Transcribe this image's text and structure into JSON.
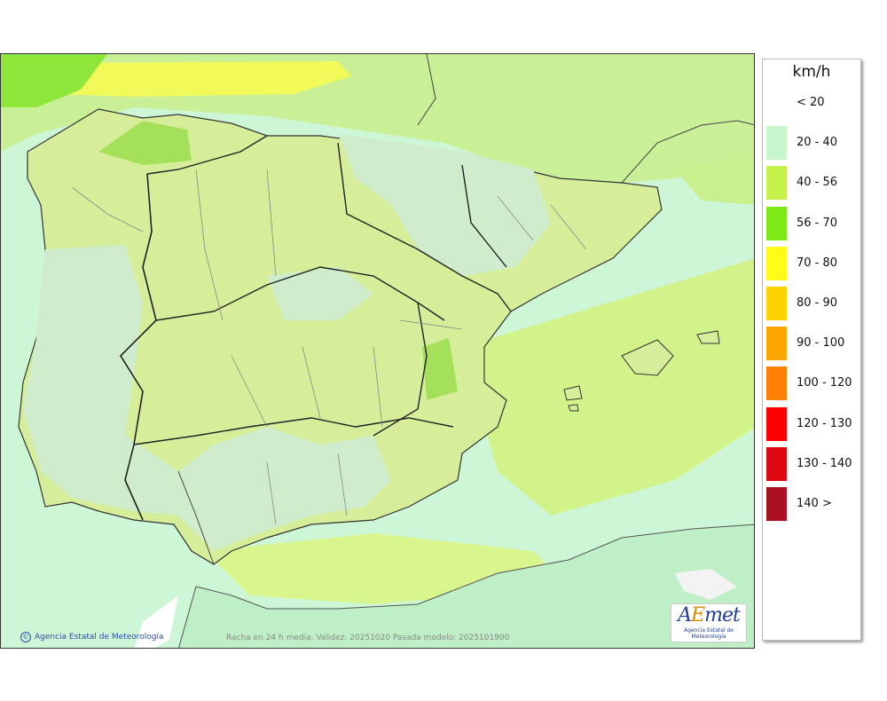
{
  "map": {
    "credit": "Agencia Estatal de Meteorología",
    "caption": "Racha en 24 h media. Validez: 20251020 Pasada modelo: 2025101900",
    "logo_text": "AEmet",
    "logo_subtext": "Agencia Estatal de Meteorología"
  },
  "legend": {
    "unit": "km/h",
    "classes": [
      {
        "label": "< 20",
        "color": "#ffffff"
      },
      {
        "label": "20 - 40",
        "color": "#c8f7cc"
      },
      {
        "label": "40 - 56",
        "color": "#c4f24a"
      },
      {
        "label": "56 - 70",
        "color": "#7dea18"
      },
      {
        "label": "70 - 80",
        "color": "#fffc1a"
      },
      {
        "label": "80 - 90",
        "color": "#ffd200"
      },
      {
        "label": "90 - 100",
        "color": "#ffa700"
      },
      {
        "label": "100 - 120",
        "color": "#ff7f00"
      },
      {
        "label": "120 - 130",
        "color": "#ff0000"
      },
      {
        "label": "130 - 140",
        "color": "#dd0a14"
      },
      {
        "label": "140 >",
        "color": "#aa1020"
      }
    ]
  }
}
